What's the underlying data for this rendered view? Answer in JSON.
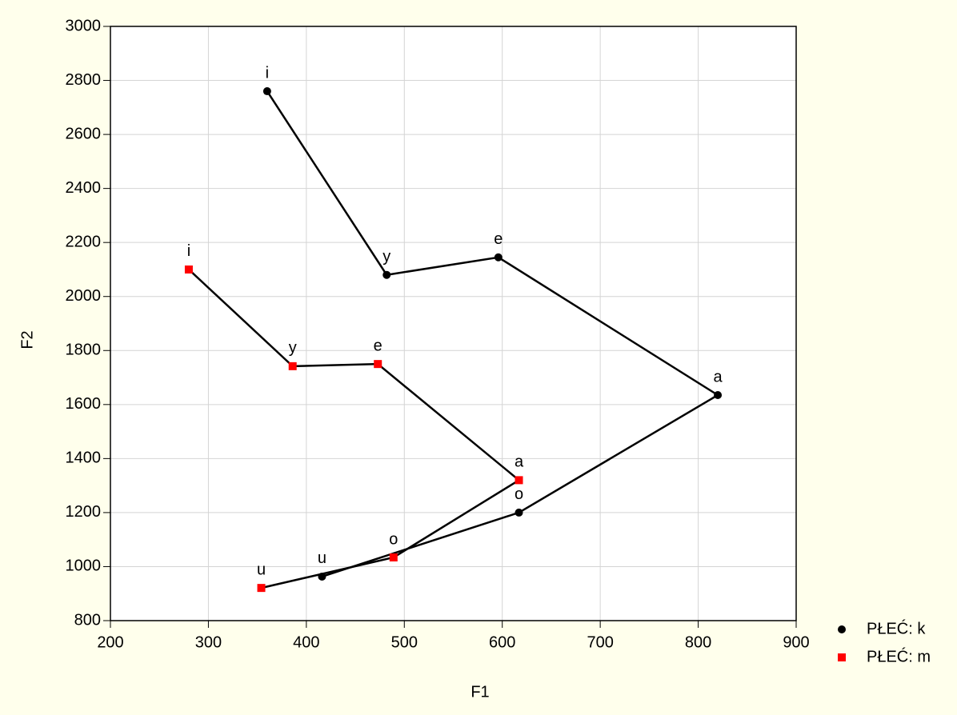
{
  "chart_data": {
    "type": "line",
    "xlabel": "F1",
    "ylabel": "F2",
    "xlim": [
      200,
      900
    ],
    "xticks": [
      200,
      300,
      400,
      500,
      600,
      700,
      800,
      900
    ],
    "ylim": [
      800,
      3000
    ],
    "yticks": [
      800,
      1000,
      1200,
      1400,
      1600,
      1800,
      2000,
      2200,
      2400,
      2600,
      2800,
      3000
    ],
    "grid": true,
    "legend": "right",
    "series": [
      {
        "name": "PŁEĆ: k",
        "color": "#000000",
        "marker": "circle",
        "point_labels": [
          "i",
          "y",
          "e",
          "a",
          "o",
          "u"
        ],
        "x": [
          360,
          482,
          596,
          820,
          617,
          416
        ],
        "values": [
          2760,
          2080,
          2145,
          1635,
          1200,
          963
        ]
      },
      {
        "name": "PŁEĆ: m",
        "color": "#ff0000",
        "marker": "square",
        "point_labels": [
          "i",
          "y",
          "e",
          "a",
          "o",
          "u"
        ],
        "x": [
          280,
          386,
          473,
          617,
          489,
          354
        ],
        "values": [
          2100,
          1742,
          1750,
          1320,
          1034,
          921
        ]
      }
    ]
  }
}
